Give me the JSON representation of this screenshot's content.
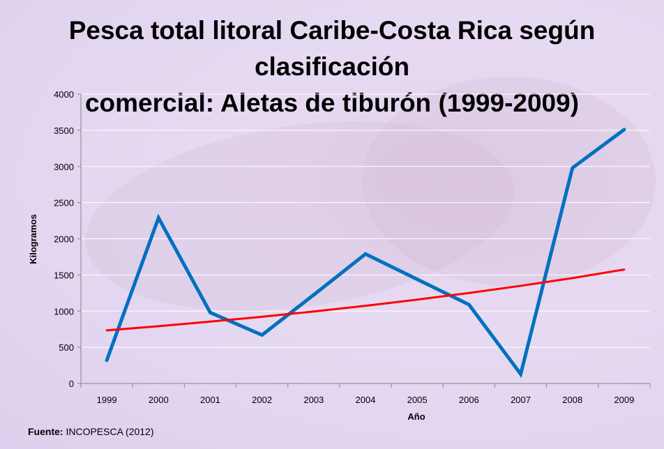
{
  "chart_data": {
    "type": "line",
    "title_line1": "Pesca total litoral Caribe-Costa Rica según clasificación",
    "title_line2": "comercial: Aletas de tiburón (1999-2009)",
    "xlabel": "Año",
    "ylabel": "Kilogramos",
    "categories": [
      "1999",
      "2000",
      "2001",
      "2002",
      "2003",
      "2004",
      "2005",
      "2006",
      "2007",
      "2008",
      "2009"
    ],
    "ylim": [
      0,
      4000
    ],
    "yticks": [
      0,
      500,
      1000,
      1500,
      2000,
      2500,
      3000,
      3500,
      4000
    ],
    "grid": true,
    "series": [
      {
        "values": [
          320,
          2290,
          980,
          670,
          1225,
          1790,
          1440,
          1090,
          130,
          2980,
          3510
        ],
        "color": "#0070c0",
        "kind": "data"
      },
      {
        "values": [
          734,
          792,
          855,
          922,
          995,
          1074,
          1159,
          1251,
          1350,
          1457,
          1575
        ],
        "color": "#ff0000",
        "kind": "exponential trendline"
      }
    ]
  },
  "source": {
    "label": "Fuente:",
    "text": "INCOPESCA (2012)"
  },
  "colors": {
    "background": "#e4d8f0",
    "gridline": "#ffffff",
    "axis": "#868686"
  }
}
